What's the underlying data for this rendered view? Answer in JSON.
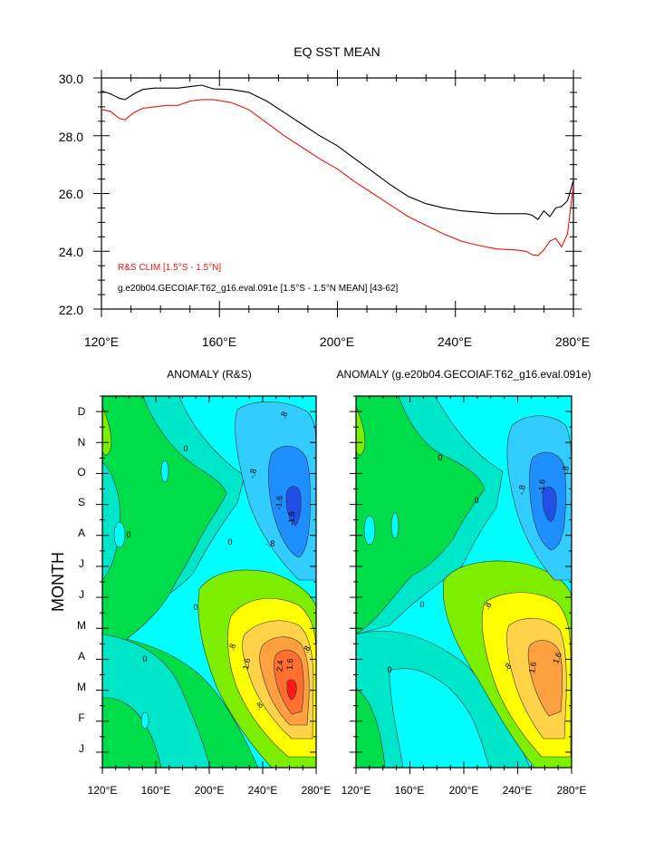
{
  "line_chart": {
    "title": "EQ SST MEAN",
    "y_ticks": [
      "30.0",
      "28.0",
      "26.0",
      "24.0",
      "22.0"
    ],
    "x_ticks": [
      "120°E",
      "160°E",
      "200°E",
      "240°E",
      "280°E"
    ],
    "legend": {
      "red_label": "R&S CLIM [1.5°S - 1.5°N]",
      "black_label": "g.e20b04.GECOIAF.T62_g16.eval.091e [1.5°S - 1.5°N MEAN] [43-62]"
    },
    "colors": {
      "red": "#e8140c",
      "black": "#000000"
    }
  },
  "anomaly_left": {
    "title": "ANOMALY (R&S)"
  },
  "anomaly_right": {
    "title": "ANOMALY (g.e20b04.GECOIAF.T62_g16.eval.091e)"
  },
  "month_axis": {
    "label": "MONTH",
    "ticks": [
      "D",
      "N",
      "O",
      "S",
      "A",
      "J",
      "J",
      "M",
      "A",
      "M",
      "F",
      "J"
    ]
  },
  "lower_x_ticks": [
    "120°E",
    "160°E",
    "200°E",
    "240°E",
    "280°E"
  ],
  "contour_labels": {
    "left": [
      ".8",
      "-.8",
      "-1.6",
      "-1.6",
      "-.8",
      "0",
      "0",
      "0",
      "0",
      ".8",
      "1.6",
      "2.4",
      ".8",
      "1.6",
      ".8",
      "0"
    ],
    "right": [
      "-.8",
      "-1.6",
      "-.8",
      "0",
      "0",
      "0",
      ".8",
      ".8",
      "1.6",
      "1.6",
      "0"
    ]
  },
  "palette": {
    "cyan": "#00ffff",
    "teal": "#00e6c8",
    "green": "#00dd4a",
    "lime": "#7dee00",
    "sky": "#33ccff",
    "blue": "#1f8fff",
    "deep_blue": "#1f4fe6",
    "yellow": "#ffff00",
    "light_orange": "#ffd24a",
    "orange": "#ffa040",
    "dark_orange": "#ff7030",
    "red": "#ff1a1a"
  },
  "chart_data": [
    {
      "type": "line",
      "title": "EQ SST MEAN",
      "xlim": [
        120,
        280
      ],
      "ylim": [
        22,
        30
      ],
      "x_ticks": [
        120,
        160,
        200,
        240,
        280
      ],
      "y_ticks": [
        22,
        24,
        26,
        28,
        30
      ],
      "series": [
        {
          "name": "R&S CLIM [1.5°S - 1.5°N]",
          "color": "#e8140c",
          "x": [
            120,
            123,
            126,
            128,
            131,
            134,
            138,
            142,
            146,
            150,
            154,
            158,
            164,
            170,
            176,
            182,
            188,
            194,
            200,
            206,
            212,
            218,
            224,
            230,
            236,
            242,
            248,
            254,
            260,
            264,
            266,
            268,
            270,
            272,
            274,
            276,
            278,
            280
          ],
          "y": [
            28.9,
            28.85,
            28.6,
            28.55,
            28.8,
            28.95,
            29.0,
            29.05,
            29.05,
            29.2,
            29.25,
            29.25,
            29.15,
            28.9,
            28.45,
            28.0,
            27.6,
            27.2,
            26.85,
            26.4,
            26.0,
            25.6,
            25.2,
            24.9,
            24.6,
            24.35,
            24.2,
            24.08,
            24.05,
            24.0,
            23.88,
            23.85,
            24.05,
            24.35,
            24.45,
            24.15,
            24.6,
            26.3
          ]
        },
        {
          "name": "g.e20b04.GECOIAF.T62_g16.eval.091e [1.5°S - 1.5°N MEAN] [43-62]",
          "color": "#000000",
          "x": [
            120,
            123,
            126,
            128,
            131,
            134,
            138,
            142,
            146,
            150,
            154,
            158,
            164,
            170,
            176,
            182,
            188,
            194,
            200,
            206,
            212,
            218,
            224,
            230,
            236,
            242,
            248,
            254,
            260,
            264,
            266,
            268,
            270,
            272,
            274,
            276,
            278,
            280
          ],
          "y": [
            29.55,
            29.45,
            29.3,
            29.25,
            29.45,
            29.6,
            29.65,
            29.65,
            29.65,
            29.7,
            29.75,
            29.62,
            29.6,
            29.5,
            29.2,
            28.8,
            28.4,
            28.0,
            27.65,
            27.2,
            26.75,
            26.3,
            25.9,
            25.65,
            25.5,
            25.4,
            25.35,
            25.3,
            25.3,
            25.3,
            25.25,
            25.1,
            25.4,
            25.2,
            25.5,
            25.55,
            25.75,
            26.45
          ]
        }
      ]
    },
    {
      "type": "heatmap",
      "title": "ANOMALY (R&S)",
      "ylabel": "MONTH",
      "xlim": [
        120,
        280
      ],
      "contour_interval": 0.4,
      "max_positive_approx": 2.8,
      "min_negative_approx": -2.0
    },
    {
      "type": "heatmap",
      "title": "ANOMALY (g.e20b04.GECOIAF.T62_g16.eval.091e)",
      "xlim": [
        120,
        280
      ],
      "contour_interval": 0.4,
      "max_positive_approx": 2.0,
      "min_negative_approx": -2.0
    }
  ]
}
